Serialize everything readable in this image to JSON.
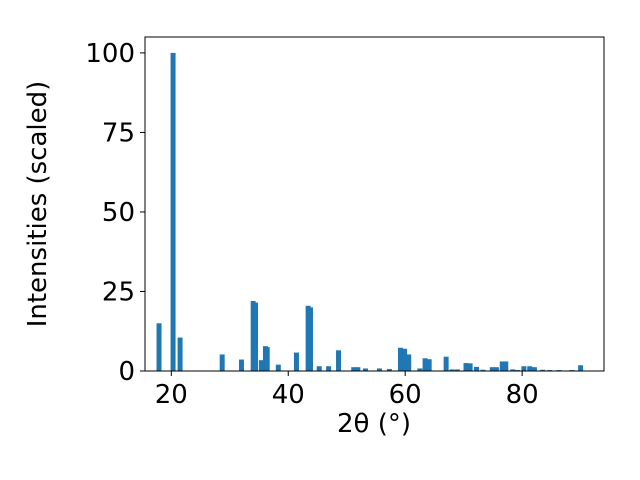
{
  "chart_data": {
    "type": "bar",
    "xlabel": "2θ (°)",
    "ylabel": "Intensities (scaled)",
    "color": "#1f77b4",
    "x": [
      17.9,
      20.3,
      21.5,
      28.7,
      32.0,
      34.0,
      34.4,
      35.4,
      36.1,
      36.4,
      38.3,
      41.4,
      43.4,
      43.8,
      45.3,
      46.9,
      48.6,
      51.2,
      51.9,
      53.2,
      55.6,
      57.3,
      59.2,
      59.9,
      60.6,
      62.5,
      63.4,
      64.1,
      67.0,
      68.0,
      68.9,
      70.4,
      71.1,
      72.2,
      73.3,
      74.9,
      75.6,
      76.6,
      77.2,
      78.4,
      79.2,
      80.3,
      81.3,
      82.1,
      83.5,
      84.7,
      86.3,
      88.5,
      90.0
    ],
    "values": [
      15,
      100,
      10.5,
      5.2,
      3.6,
      22,
      21.5,
      3.4,
      7.8,
      7.5,
      2,
      5.8,
      20.5,
      20,
      1.5,
      1.5,
      6.5,
      1.2,
      1.2,
      0.8,
      0.8,
      0.6,
      7.3,
      7,
      5.2,
      0.8,
      4,
      3.7,
      4.5,
      0.5,
      0.5,
      2.5,
      2.4,
      1.3,
      0.4,
      1.2,
      1.2,
      3,
      3,
      0.5,
      0.3,
      1.5,
      1.5,
      1.2,
      0.4,
      0.3,
      0.3,
      0.3,
      1.8
    ],
    "xlim": [
      15.5,
      94.0
    ],
    "ylim": [
      0,
      105
    ],
    "xticks": [
      20,
      40,
      60,
      80
    ],
    "yticks": [
      0,
      25,
      50,
      75,
      100
    ]
  }
}
